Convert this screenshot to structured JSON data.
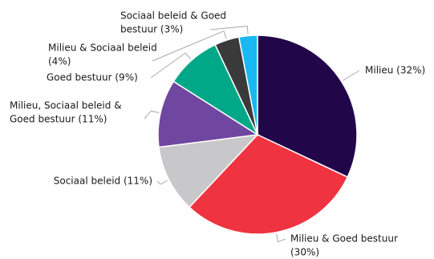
{
  "chart_data": {
    "type": "pie",
    "categories": [
      [
        "Milieu (32%)"
      ],
      [
        "Milieu & Goed bestuur",
        "(30%)"
      ],
      [
        "Sociaal beleid (11%)"
      ],
      [
        "Milieu, Sociaal beleid &",
        "Goed bestuur (11%)"
      ],
      [
        "Goed bestuur (9%)"
      ],
      [
        "Milieu & Sociaal beleid",
        "(4%)"
      ],
      [
        "Sociaal beleid & Goed",
        "bestuur (3%)"
      ]
    ],
    "values": [
      32,
      30,
      11,
      11,
      9,
      4,
      3
    ],
    "colors": [
      "#22064a",
      "#ef3340",
      "#c8c8ca",
      "#6f46a0",
      "#00a887",
      "#3a3a3a",
      "#1ab8f0"
    ]
  }
}
